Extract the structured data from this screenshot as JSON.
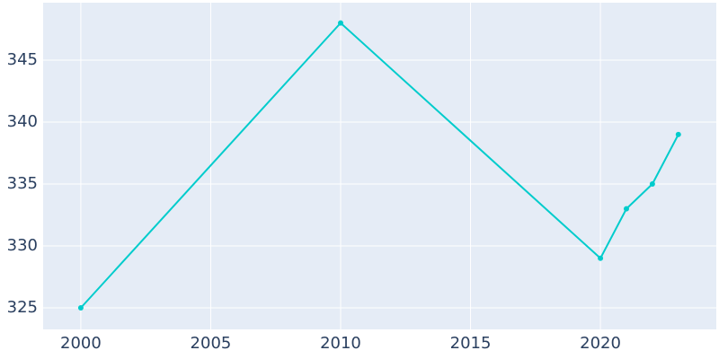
{
  "chart_data": {
    "type": "line",
    "x": [
      2000,
      2010,
      2020,
      2021,
      2022,
      2023
    ],
    "series": [
      {
        "color": "#00cccc",
        "values": [
          325,
          348,
          329,
          333,
          335,
          339
        ]
      }
    ],
    "xlim": [
      1998.55,
      2024.46
    ],
    "xticks": [
      2000,
      2005,
      2010,
      2015,
      2020
    ],
    "ylim": [
      323.26,
      349.64
    ],
    "yticks": [
      325,
      330,
      335,
      340,
      345
    ],
    "grid": true
  }
}
